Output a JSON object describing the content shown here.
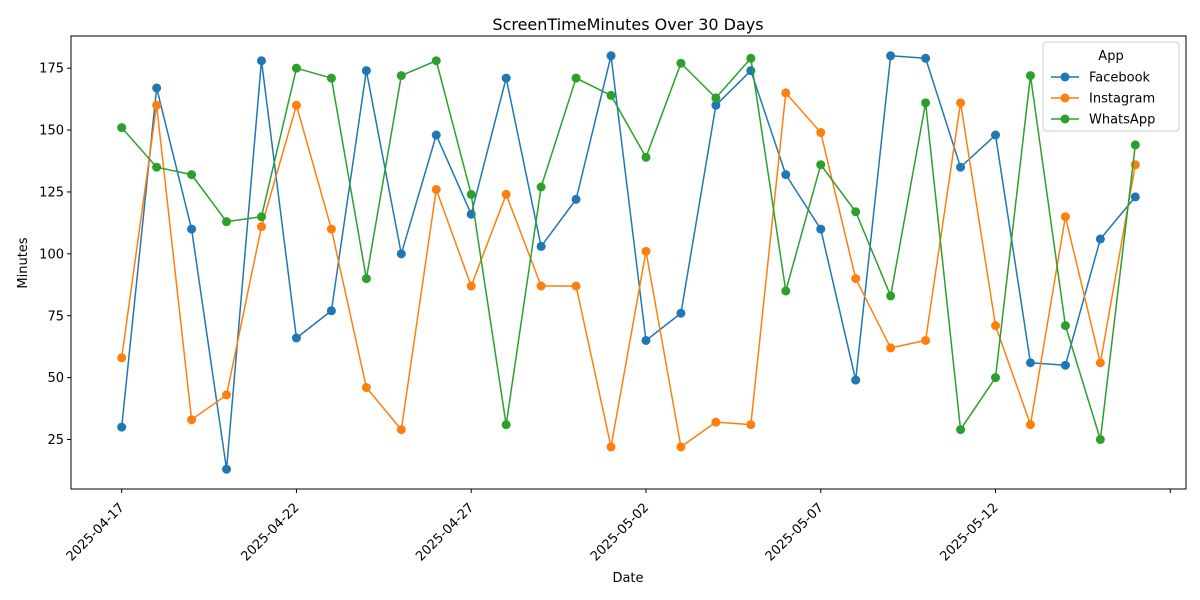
{
  "chart_data": {
    "type": "line",
    "title": "ScreenTimeMinutes Over 30 Days",
    "xlabel": "Date",
    "ylabel": "Minutes",
    "dates": [
      "2025-04-17",
      "2025-04-18",
      "2025-04-19",
      "2025-04-20",
      "2025-04-21",
      "2025-04-22",
      "2025-04-23",
      "2025-04-24",
      "2025-04-25",
      "2025-04-26",
      "2025-04-27",
      "2025-04-28",
      "2025-04-29",
      "2025-04-30",
      "2025-05-01",
      "2025-05-02",
      "2025-05-03",
      "2025-05-04",
      "2025-05-05",
      "2025-05-06",
      "2025-05-07",
      "2025-05-08",
      "2025-05-09",
      "2025-05-10",
      "2025-05-11",
      "2025-05-12",
      "2025-05-13",
      "2025-05-14",
      "2025-05-15",
      "2025-05-16"
    ],
    "x_ticks": [
      "2025-04-17",
      "2025-04-22",
      "2025-04-27",
      "2025-05-02",
      "2025-05-07",
      "2025-05-12"
    ],
    "y_ticks": [
      25,
      50,
      75,
      100,
      125,
      150,
      175
    ],
    "ylim": [
      5,
      188
    ],
    "grid": false,
    "legend": {
      "title": "App",
      "placement": "top-right"
    },
    "series": [
      {
        "name": "Facebook",
        "color": "#1f77b4",
        "values": [
          30,
          167,
          110,
          13,
          178,
          66,
          77,
          174,
          100,
          148,
          116,
          171,
          103,
          122,
          180,
          65,
          76,
          160,
          174,
          132,
          110,
          49,
          180,
          179,
          135,
          148,
          56,
          55,
          106,
          123
        ]
      },
      {
        "name": "Instagram",
        "color": "#ff7f0e",
        "values": [
          58,
          160,
          33,
          43,
          111,
          160,
          110,
          46,
          29,
          126,
          87,
          124,
          87,
          87,
          22,
          101,
          22,
          32,
          31,
          165,
          149,
          90,
          62,
          65,
          161,
          71,
          31,
          115,
          56,
          136
        ]
      },
      {
        "name": "WhatsApp",
        "color": "#2ca02c",
        "values": [
          151,
          135,
          132,
          113,
          115,
          175,
          171,
          90,
          172,
          178,
          124,
          31,
          127,
          171,
          164,
          139,
          177,
          163,
          179,
          85,
          136,
          117,
          83,
          161,
          29,
          50,
          172,
          71,
          25,
          144
        ]
      }
    ]
  }
}
